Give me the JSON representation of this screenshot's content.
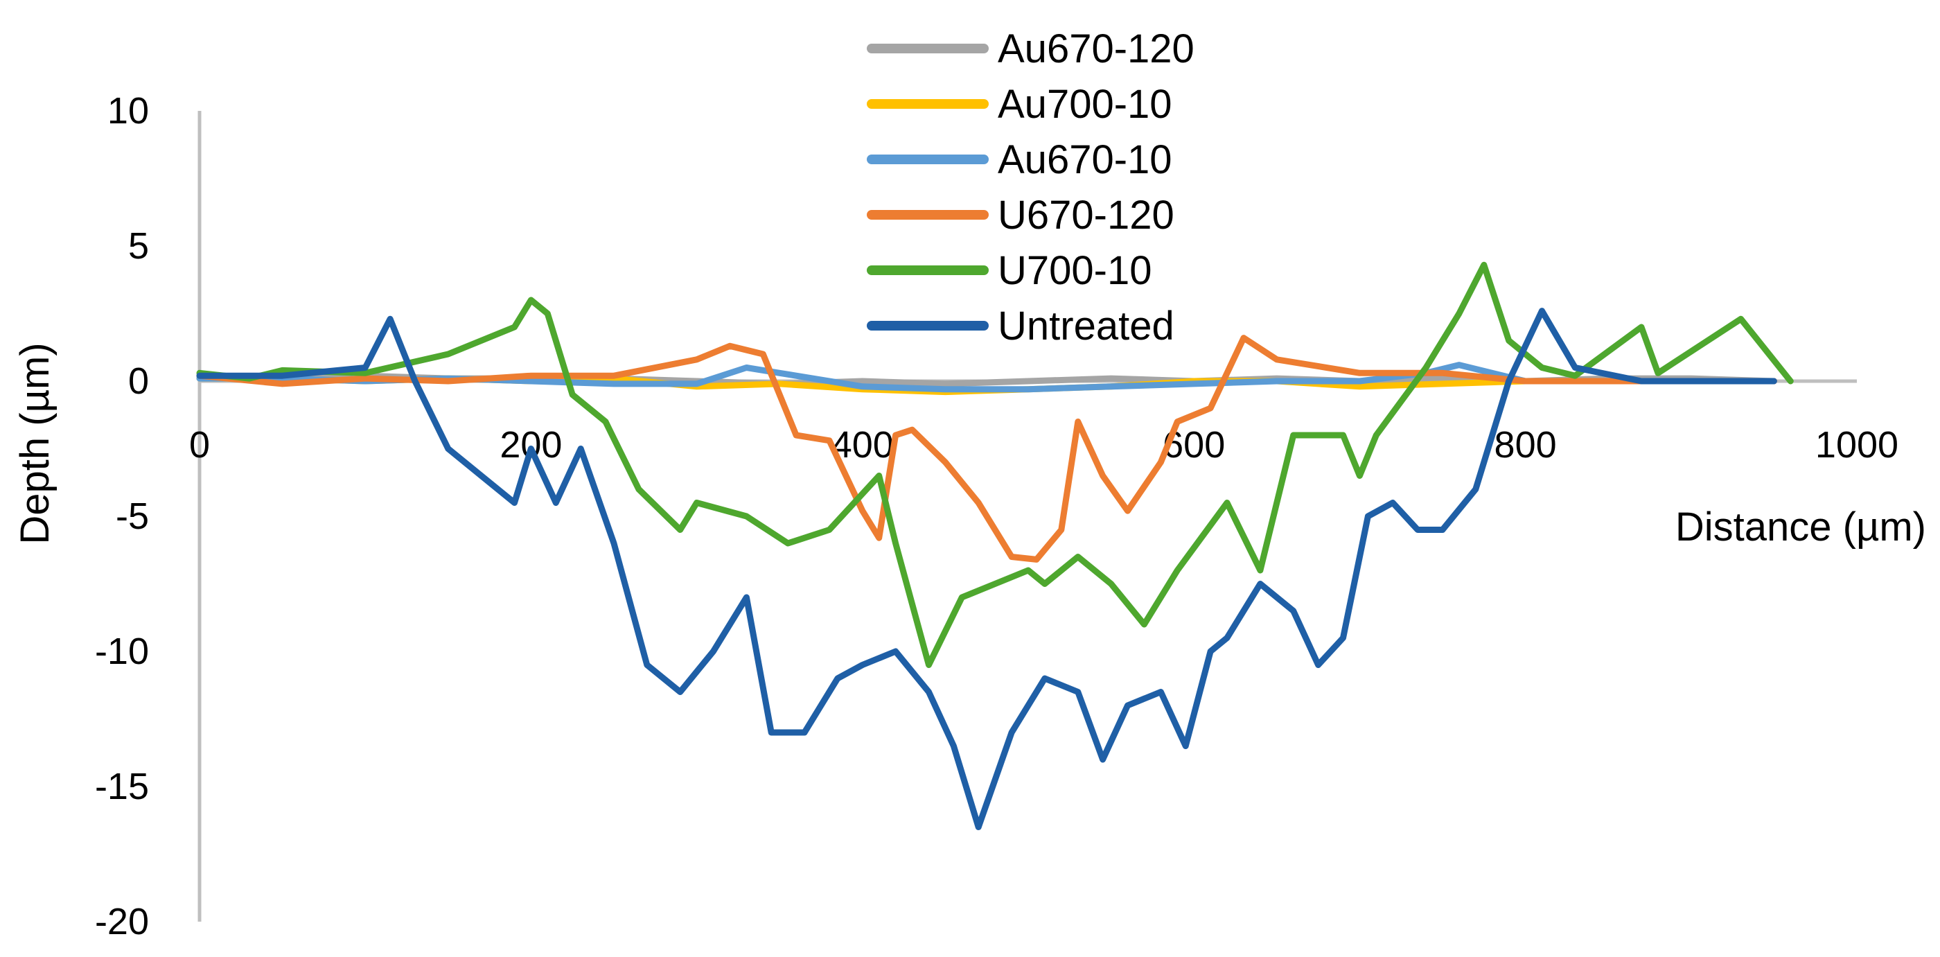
{
  "chart_data": {
    "type": "line",
    "title": "",
    "xlabel": "Distance (µm)",
    "ylabel": "Depth (µm)",
    "xlim": [
      0,
      1000
    ],
    "ylim": [
      -20,
      10
    ],
    "x_ticks": [
      "0",
      "200",
      "400",
      "600",
      "800",
      "1000"
    ],
    "y_ticks": [
      "10",
      "5",
      "0",
      "-5",
      "-10",
      "-15",
      "-20"
    ],
    "grid": false,
    "legend_position": "top-center",
    "series": [
      {
        "name": "Au670-120",
        "color": "#a5a5a5",
        "x": [
          0,
          50,
          100,
          150,
          200,
          250,
          300,
          350,
          400,
          450,
          500,
          550,
          600,
          650,
          700,
          750,
          800,
          850,
          900,
          950
        ],
        "y": [
          0.2,
          0.1,
          0.2,
          0.1,
          0.1,
          0.1,
          0.0,
          -0.1,
          0.0,
          -0.1,
          0.0,
          0.1,
          0.0,
          0.1,
          0.0,
          0.1,
          0.0,
          0.1,
          0.1,
          0.0
        ]
      },
      {
        "name": "Au700-10",
        "color": "#ffc000",
        "x": [
          0,
          50,
          100,
          150,
          200,
          250,
          300,
          350,
          400,
          450,
          500,
          550,
          600,
          650,
          700,
          750,
          800
        ],
        "y": [
          0.1,
          0.1,
          0.0,
          0.1,
          0.0,
          0.1,
          -0.2,
          -0.1,
          -0.3,
          -0.4,
          -0.3,
          -0.2,
          0.0,
          0.0,
          -0.2,
          -0.1,
          0.0
        ]
      },
      {
        "name": "Au670-10",
        "color": "#5b9bd5",
        "x": [
          0,
          50,
          100,
          150,
          200,
          250,
          300,
          330,
          350,
          400,
          450,
          500,
          550,
          600,
          650,
          700,
          740,
          760,
          800
        ],
        "y": [
          0.1,
          0.1,
          0.0,
          0.1,
          0.0,
          -0.1,
          -0.1,
          0.5,
          0.3,
          -0.2,
          -0.3,
          -0.3,
          -0.2,
          -0.1,
          0.0,
          0.0,
          0.3,
          0.6,
          0.0
        ]
      },
      {
        "name": "U670-120",
        "color": "#ed7d31",
        "x": [
          0,
          50,
          100,
          150,
          200,
          250,
          300,
          320,
          340,
          360,
          380,
          400,
          410,
          420,
          430,
          450,
          470,
          490,
          505,
          520,
          530,
          545,
          560,
          580,
          590,
          610,
          630,
          650,
          670,
          700,
          750,
          800,
          850,
          950
        ],
        "y": [
          0.2,
          -0.1,
          0.1,
          0.0,
          0.2,
          0.2,
          0.8,
          1.3,
          1.0,
          -2.0,
          -2.2,
          -4.8,
          -5.8,
          -2.0,
          -1.8,
          -3.0,
          -4.5,
          -6.5,
          -6.6,
          -5.5,
          -1.5,
          -3.5,
          -4.8,
          -3.0,
          -1.5,
          -1.0,
          1.6,
          0.8,
          0.6,
          0.3,
          0.3,
          0.0,
          0.0,
          0.0
        ]
      },
      {
        "name": "U700-10",
        "color": "#4ea72e",
        "x": [
          0,
          30,
          50,
          100,
          150,
          190,
          200,
          210,
          225,
          245,
          265,
          290,
          300,
          330,
          355,
          380,
          410,
          420,
          440,
          460,
          480,
          500,
          510,
          530,
          550,
          570,
          590,
          620,
          640,
          660,
          690,
          700,
          710,
          740,
          760,
          775,
          790,
          810,
          830,
          870,
          880,
          930,
          960
        ],
        "y": [
          0.3,
          0.1,
          0.4,
          0.3,
          1.0,
          2.0,
          3.0,
          2.5,
          -0.5,
          -1.5,
          -4.0,
          -5.5,
          -4.5,
          -5.0,
          -6.0,
          -5.5,
          -3.5,
          -6.0,
          -10.5,
          -8.0,
          -7.5,
          -7.0,
          -7.5,
          -6.5,
          -7.5,
          -9.0,
          -7.0,
          -4.5,
          -7.0,
          -2.0,
          -2.0,
          -3.5,
          -2.0,
          0.5,
          2.5,
          4.3,
          1.5,
          0.5,
          0.2,
          2.0,
          0.3,
          2.3,
          0.0
        ]
      },
      {
        "name": "Untreated",
        "color": "#1f5fa6",
        "x": [
          0,
          50,
          100,
          115,
          130,
          150,
          170,
          190,
          200,
          215,
          230,
          250,
          270,
          290,
          310,
          330,
          345,
          365,
          385,
          400,
          420,
          440,
          455,
          470,
          490,
          510,
          530,
          545,
          560,
          580,
          595,
          610,
          620,
          640,
          660,
          675,
          690,
          705,
          720,
          735,
          750,
          770,
          790,
          810,
          830,
          870,
          950
        ],
        "y": [
          0.2,
          0.2,
          0.5,
          2.3,
          0.0,
          -2.5,
          -3.5,
          -4.5,
          -2.5,
          -4.5,
          -2.5,
          -6.0,
          -10.5,
          -11.5,
          -10.0,
          -8.0,
          -13.0,
          -13.0,
          -11.0,
          -10.5,
          -10.0,
          -11.5,
          -13.5,
          -16.5,
          -13.0,
          -11.0,
          -11.5,
          -14.0,
          -12.0,
          -11.5,
          -13.5,
          -10.0,
          -9.5,
          -7.5,
          -8.5,
          -10.5,
          -9.5,
          -5.0,
          -4.5,
          -5.5,
          -5.5,
          -4.0,
          0.0,
          2.6,
          0.5,
          0.0,
          0.0
        ]
      }
    ]
  }
}
